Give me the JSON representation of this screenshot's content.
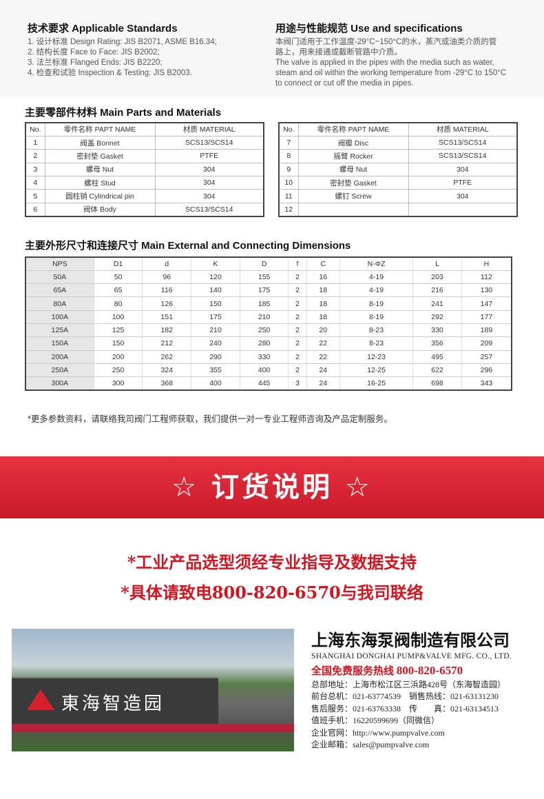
{
  "standards": {
    "title": "技术要求 Applicable Standards",
    "items": [
      "1. 设计标准 Design Rating: JIS B2071, ASME B16.34;",
      "2. 结构长度 Face to Face: JIS B2002;",
      "3. 法兰标准 Flanged Ends: JIS B2220;",
      "4. 检查和试验 Inspection & Testing: JIS B2003."
    ]
  },
  "usage": {
    "title": "用途与性能规范 Use and specifications",
    "lines": [
      "本阀门适用于工作温度-29°C~150°C的水，蒸汽或油类介质的管",
      "路上，用来接通或截断管路中介质。",
      "The valve is applied in the pipes with the media such as water,",
      "steam and oil within the working temperature from -29°C to 150°C",
      "to connect or cut off the media in pipes."
    ]
  },
  "parts": {
    "title": "主要零部件材料 Main Parts and Materials",
    "headers": [
      "No.",
      "零件名称 PAPT NAME",
      "材质 MATERIAL"
    ],
    "left": [
      [
        "1",
        "阀盖 Bonnet",
        "SCS13/SCS14"
      ],
      [
        "2",
        "密封垫 Gasket",
        "PTFE"
      ],
      [
        "3",
        "螺母 Nut",
        "304"
      ],
      [
        "4",
        "螺柱 Stud",
        "304"
      ],
      [
        "5",
        "圆柱销 Cylindrical pin",
        "304"
      ],
      [
        "6",
        "阀体 Body",
        "SCS13/SCS14"
      ]
    ],
    "right": [
      [
        "7",
        "阀瓣 Disc",
        "SCS13/SCS14"
      ],
      [
        "8",
        "摇臂 Rocker",
        "SCS13/SCS14"
      ],
      [
        "9",
        "螺母 Nut",
        "304"
      ],
      [
        "10",
        "密封垫 Gasket",
        "PTFE"
      ],
      [
        "11",
        "螺钉 Screw",
        "304"
      ],
      [
        "12",
        "",
        ""
      ]
    ]
  },
  "dimensions": {
    "title": "主要外形尺寸和连接尺寸 Main External and Connecting Dimensions",
    "headers": [
      "NPS",
      "D1",
      "d",
      "K",
      "D",
      "f",
      "C",
      "N-ΦZ",
      "L",
      "H"
    ],
    "rows": [
      [
        "50A",
        "50",
        "96",
        "120",
        "155",
        "2",
        "16",
        "4-19",
        "203",
        "112"
      ],
      [
        "65A",
        "65",
        "116",
        "140",
        "175",
        "2",
        "18",
        "4-19",
        "216",
        "130"
      ],
      [
        "80A",
        "80",
        "126",
        "150",
        "185",
        "2",
        "18",
        "8-19",
        "241",
        "147"
      ],
      [
        "100A",
        "100",
        "151",
        "175",
        "210",
        "2",
        "18",
        "8-19",
        "292",
        "177"
      ],
      [
        "125A",
        "125",
        "182",
        "210",
        "250",
        "2",
        "20",
        "8-23",
        "330",
        "189"
      ],
      [
        "150A",
        "150",
        "212",
        "240",
        "280",
        "2",
        "22",
        "8-23",
        "356",
        "209"
      ],
      [
        "200A",
        "200",
        "262",
        "290",
        "330",
        "2",
        "22",
        "12-23",
        "495",
        "257"
      ],
      [
        "250A",
        "250",
        "324",
        "355",
        "400",
        "2",
        "24",
        "12-25",
        "622",
        "296"
      ],
      [
        "300A",
        "300",
        "368",
        "400",
        "445",
        "3",
        "24",
        "16-25",
        "698",
        "343"
      ]
    ]
  },
  "note": "*更多参数资料，请联络我司阀门工程师获取，我们提供一对一专业工程师咨询及产品定制服务。",
  "banner": {
    "title": "☆ 订货说明 ☆",
    "color": "#d7202f"
  },
  "order_lines": [
    "*工业产品选型须经专业指导及数据支持",
    "*具体请致电800-820-6570与我司联络"
  ],
  "photo": {
    "sign": "東海智造园"
  },
  "company": {
    "name_cn": "上海东海泵阀制造有限公司",
    "name_en": "SHANGHAI DONGHAI PUMP&VALVE MFG. CO., LTD.",
    "hotline_label": "全国免费服务热线",
    "hotline": "800-820-6570",
    "lines": [
      "总部地址：上海市松江区三浜路428号（东海智造园）",
      "前台总机：021-63774539　销售热线：021-63131230",
      "售后服务：021-63763338　传　　真：021-63134513",
      "值班手机：16220599699（同微信）",
      "企业官网：http://www.pumpvalve.com",
      "企业邮箱：sales@pumpvalve.com"
    ]
  }
}
